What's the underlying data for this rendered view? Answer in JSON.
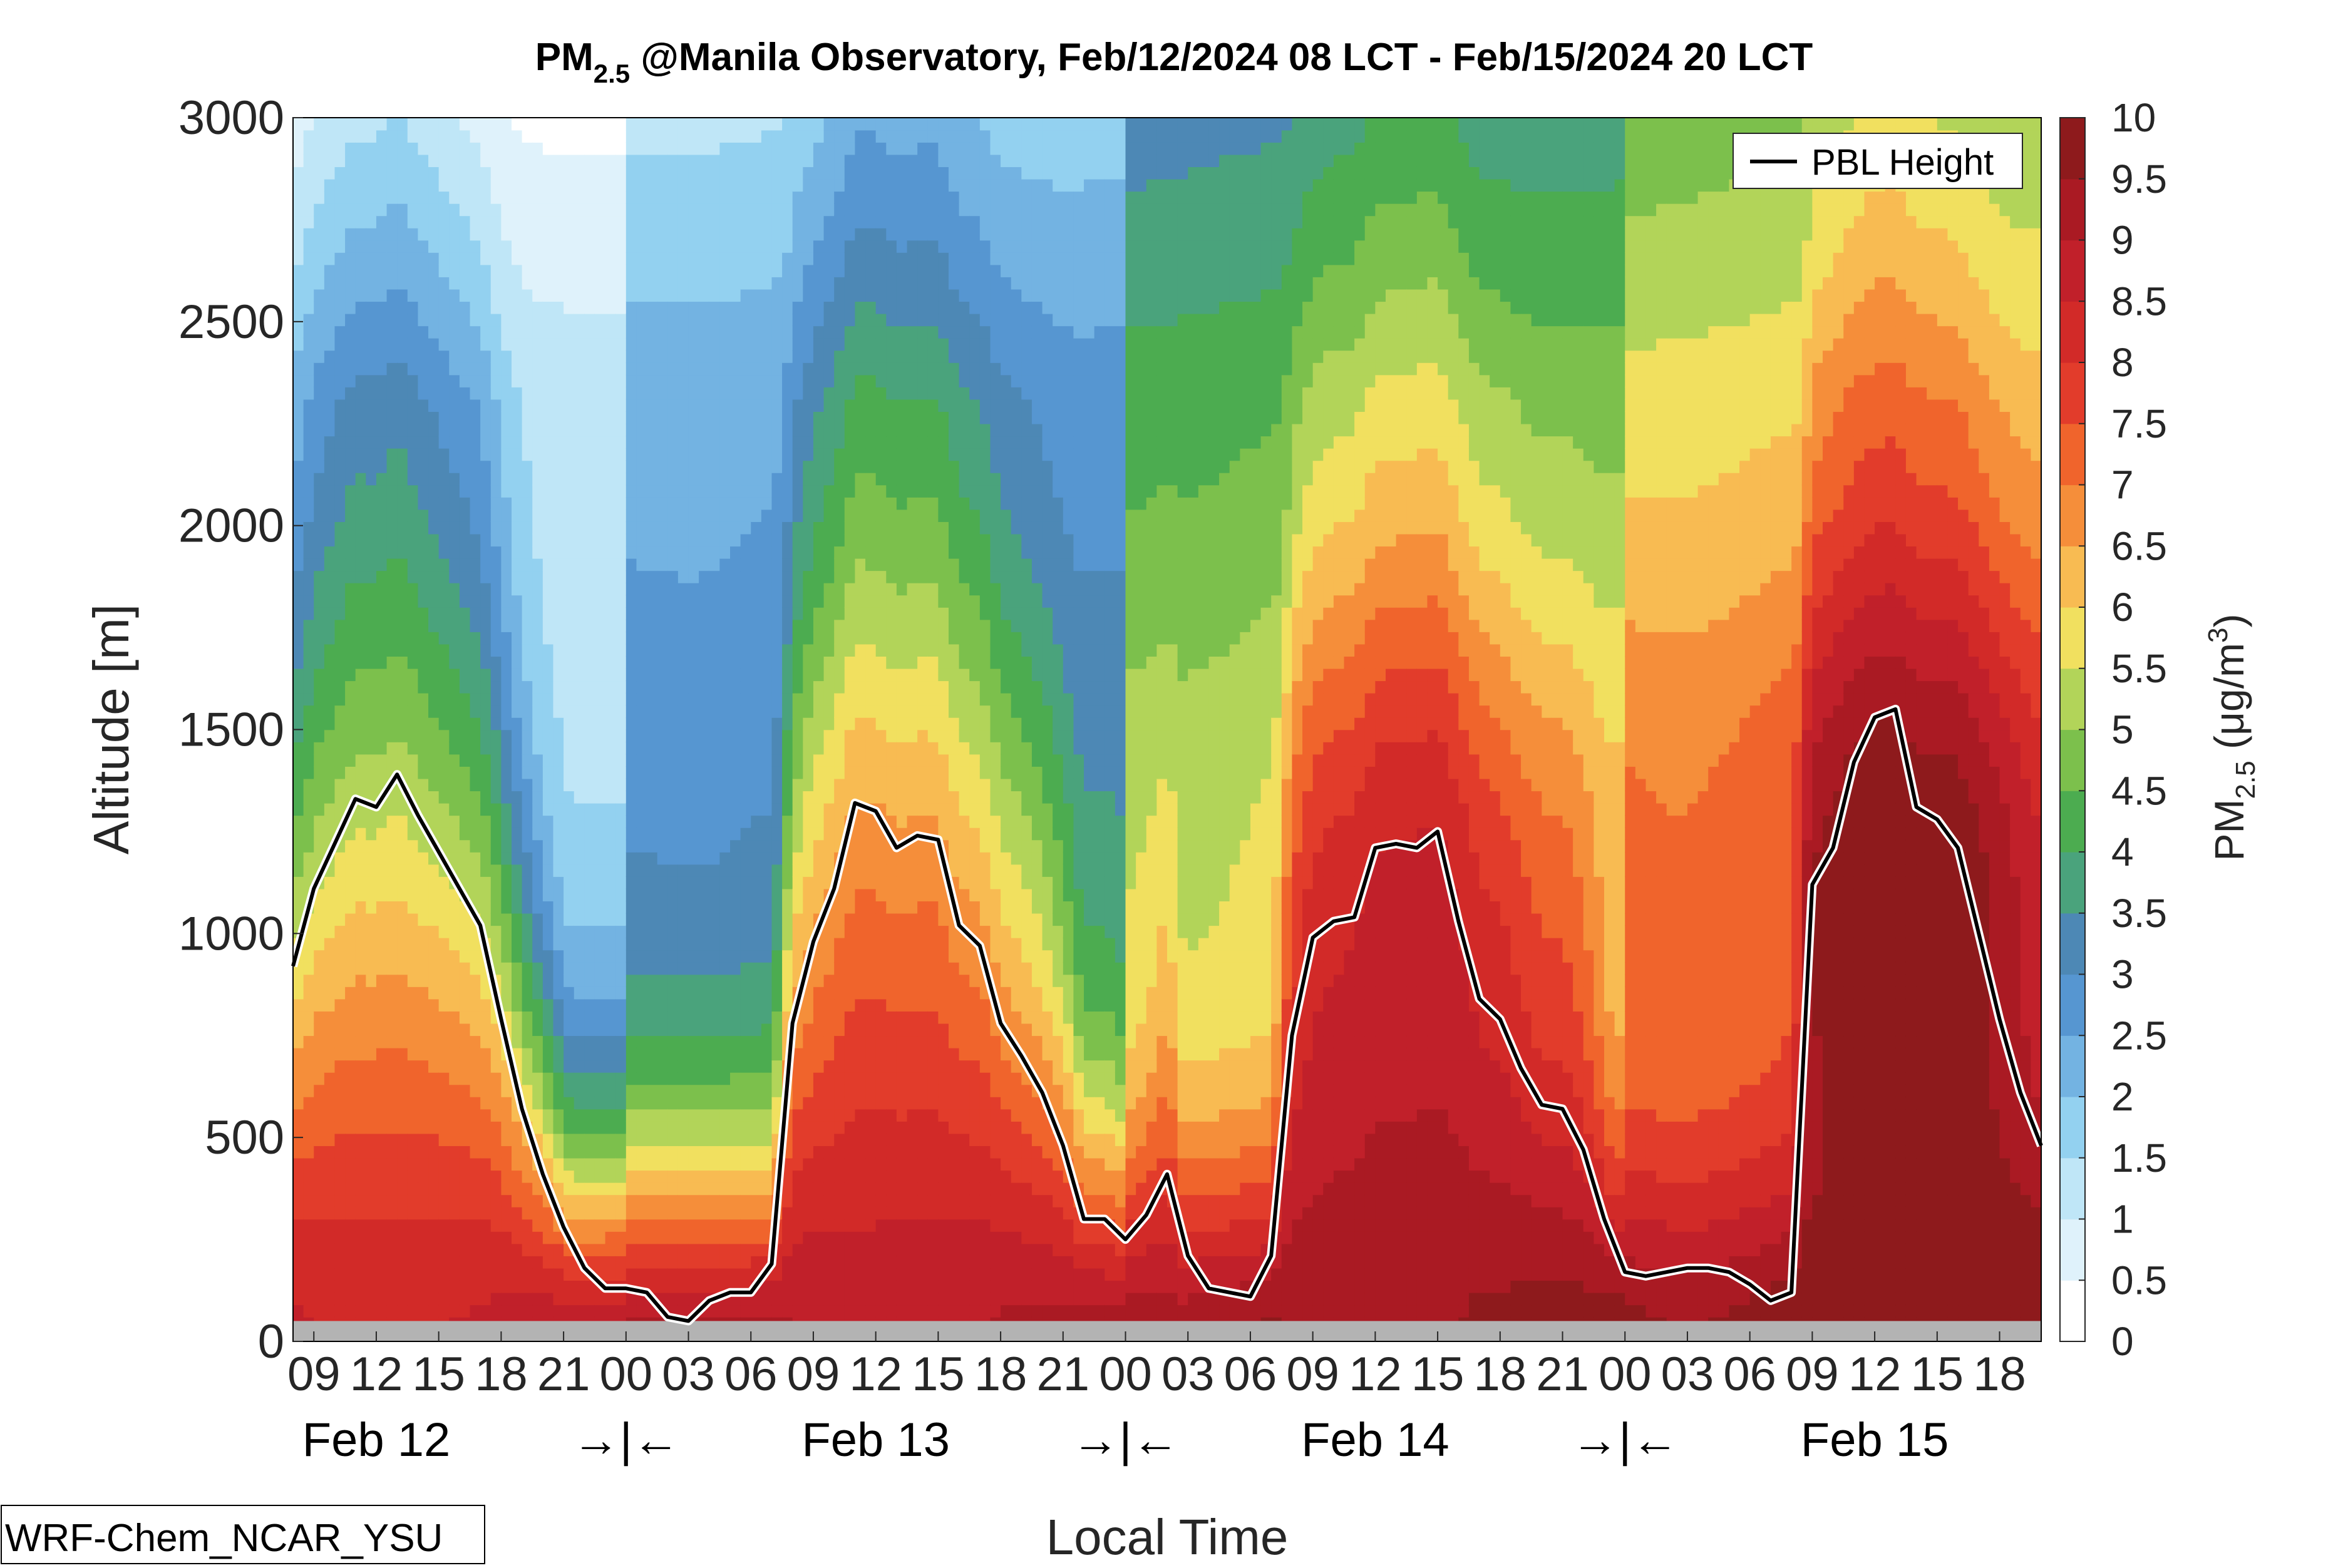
{
  "chart_data": {
    "type": "heatmap",
    "title_main": "PM",
    "title_sub": "2.5",
    "title_rest": " @Manila Observatory, Feb/12/2024 08 LCT - Feb/15/2024 20 LCT",
    "xlabel": "Local Time",
    "ylabel": "Altitude [m]",
    "x_range_hours": [
      0,
      84
    ],
    "ylim": [
      0,
      3000
    ],
    "y_ticks": [
      0,
      500,
      1000,
      1500,
      2000,
      2500,
      3000
    ],
    "x_tick_labels": [
      "09",
      "12",
      "15",
      "18",
      "21",
      "00",
      "03",
      "06",
      "09",
      "12",
      "15",
      "18",
      "21",
      "00",
      "03",
      "06",
      "09",
      "12",
      "15",
      "18",
      "21",
      "00",
      "03",
      "06",
      "09",
      "12",
      "15",
      "18"
    ],
    "day_labels": [
      "Feb 12",
      "→|←",
      "Feb 13",
      "→|←",
      "Feb 14",
      "→|←",
      "Feb 15"
    ],
    "colorbar": {
      "label_main": "PM",
      "label_sub": "2.5",
      "label_rest": " (μg/m",
      "label_sup": "3",
      "label_end": ")",
      "min": 0,
      "max": 10,
      "step": 0.5,
      "tick_labels": [
        "0",
        "0.5",
        "1",
        "1.5",
        "2",
        "2.5",
        "3",
        "3.5",
        "4",
        "4.5",
        "5",
        "5.5",
        "6",
        "6.5",
        "7",
        "7.5",
        "8",
        "8.5",
        "9",
        "9.5",
        "10"
      ],
      "colors": [
        "#ffffff",
        "#dff2fb",
        "#bfe6f7",
        "#93d1f0",
        "#73b3e2",
        "#5696d1",
        "#4d88b5",
        "#4aa37c",
        "#4cac50",
        "#7cc04c",
        "#b2d459",
        "#f1e05f",
        "#f8bb52",
        "#f58e3a",
        "#f0642c",
        "#e23c2b",
        "#d22a28",
        "#c1202a",
        "#aa1a23",
        "#8e1a1c"
      ]
    },
    "legend": {
      "entries": [
        "PBL Height"
      ],
      "placement": "top-right"
    },
    "pbl_height": {
      "name": "PBL Height",
      "x": [
        0,
        1,
        2,
        3,
        4,
        5,
        6,
        7,
        8,
        9,
        10,
        11,
        12,
        13,
        14,
        15,
        16,
        17,
        18,
        19,
        20,
        21,
        22,
        23,
        24,
        25,
        26,
        27,
        28,
        29,
        30,
        31,
        32,
        33,
        34,
        35,
        36,
        37,
        38,
        39,
        40,
        41,
        42,
        43,
        44,
        45,
        46,
        47,
        48,
        49,
        50,
        51,
        52,
        53,
        54,
        55,
        56,
        57,
        58,
        59,
        60,
        61,
        62,
        63,
        64,
        65,
        66,
        67,
        68,
        69,
        70,
        71,
        72,
        73,
        74,
        75,
        76,
        77,
        78,
        79,
        80,
        81,
        82,
        83,
        84
      ],
      "values": [
        920,
        1110,
        1220,
        1330,
        1310,
        1390,
        1290,
        1200,
        1110,
        1020,
        790,
        570,
        410,
        280,
        180,
        130,
        130,
        120,
        60,
        50,
        100,
        120,
        120,
        190,
        780,
        980,
        1110,
        1320,
        1300,
        1210,
        1240,
        1230,
        1020,
        970,
        780,
        700,
        610,
        480,
        300,
        300,
        250,
        310,
        410,
        210,
        130,
        120,
        110,
        210,
        750,
        990,
        1030,
        1040,
        1210,
        1220,
        1210,
        1250,
        1030,
        840,
        790,
        670,
        580,
        570,
        470,
        300,
        170,
        160,
        170,
        180,
        180,
        170,
        140,
        100,
        120,
        1120,
        1210,
        1420,
        1530,
        1550,
        1310,
        1280,
        1210,
        1000,
        790,
        610,
        480
      ]
    },
    "ground_band_m": 50,
    "model_label": "WRF-Chem_NCAR_YSU"
  }
}
